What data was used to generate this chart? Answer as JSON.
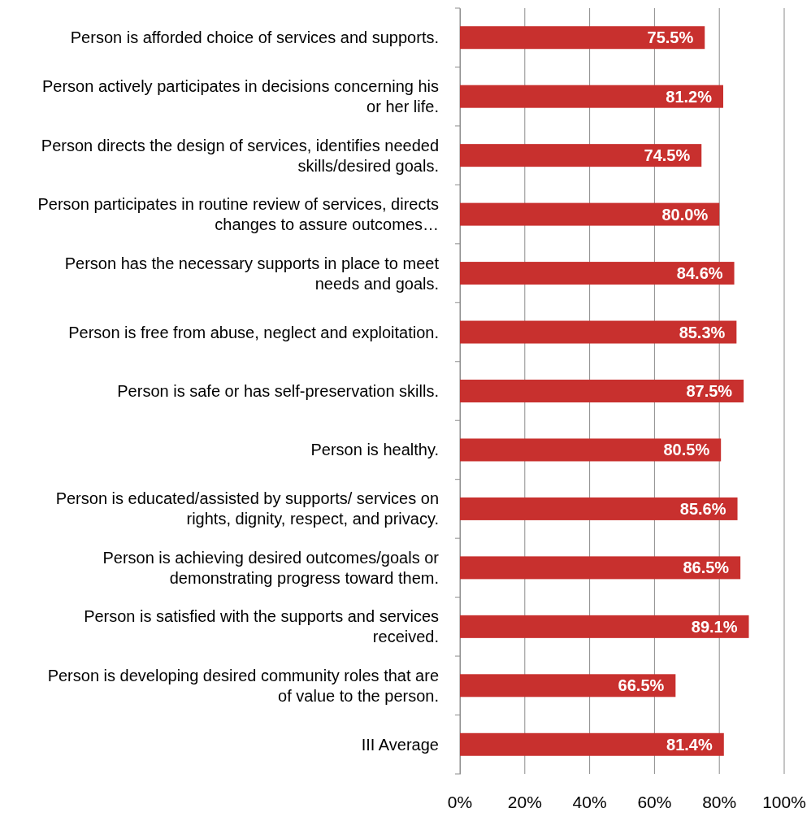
{
  "chart_data": {
    "type": "bar",
    "orientation": "horizontal",
    "categories": [
      "Person is afforded choice of services and supports.",
      "Person actively participates in decisions concerning his or her life.",
      "Person directs the design of services, identifies needed skills/desired goals.",
      "Person participates in routine review of services, directs changes to assure outcomes…",
      "Person has the necessary supports in place to meet needs and goals.",
      "Person is free from abuse, neglect and exploitation.",
      "Person is safe or has self-preservation skills.",
      "Person is healthy.",
      "Person is educated/assisted by supports/ services on rights, dignity, respect, and privacy.",
      "Person is achieving desired outcomes/goals or demonstrating progress toward them.",
      "Person is satisfied with the supports and services received.",
      "Person is developing desired community roles that are of value to the person.",
      "III Average"
    ],
    "values": [
      75.5,
      81.2,
      74.5,
      80.0,
      84.6,
      85.3,
      87.5,
      80.5,
      85.6,
      86.5,
      89.1,
      66.5,
      81.4
    ],
    "value_labels": [
      "75.5%",
      "81.2%",
      "74.5%",
      "80.0%",
      "84.6%",
      "85.3%",
      "87.5%",
      "80.5%",
      "85.6%",
      "86.5%",
      "89.1%",
      "66.5%",
      "81.4%"
    ],
    "color": "#c8302e",
    "xlim": [
      0,
      100
    ],
    "xticks": [
      {
        "value": 0,
        "label": "0%"
      },
      {
        "value": 20,
        "label": "20%"
      },
      {
        "value": 40,
        "label": "40%"
      },
      {
        "value": 60,
        "label": "60%"
      },
      {
        "value": 80,
        "label": "80%"
      },
      {
        "value": 100,
        "label": "100%"
      }
    ],
    "grid": "x"
  }
}
